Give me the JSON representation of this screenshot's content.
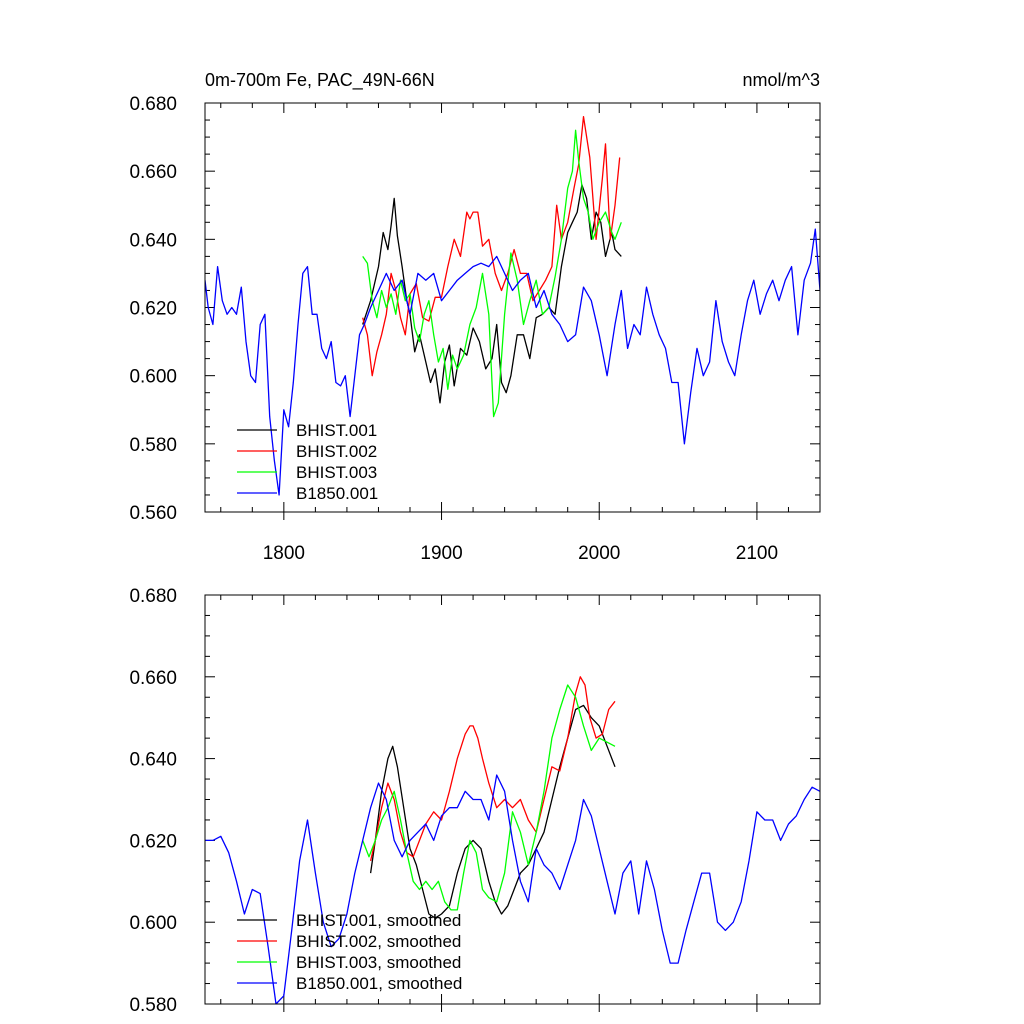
{
  "colors": {
    "BHIST.001": "#000000",
    "BHIST.002": "#ff0000",
    "BHIST.003": "#00ff00",
    "B1850.001": "#0000ff"
  },
  "chart_data": [
    {
      "type": "line",
      "title": "0m-700m Fe, PAC_49N-66N",
      "units": "nmol/m^3",
      "xlim": [
        1750,
        2140
      ],
      "ylim": [
        0.56,
        0.68
      ],
      "xticks": [
        1800,
        1900,
        2000,
        2100
      ],
      "xtick_labels": [
        "1800",
        "1900",
        "2000",
        "2100"
      ],
      "yticks": [
        0.56,
        0.58,
        0.6,
        0.62,
        0.64,
        0.66,
        0.68
      ],
      "ytick_labels": [
        "0.560",
        "0.580",
        "0.600",
        "0.620",
        "0.640",
        "0.660",
        "0.680"
      ],
      "grid": false,
      "legend_position": "bottom-left",
      "series": [
        {
          "name": "BHIST.001",
          "color": "#000000",
          "x": [
            1850,
            1855,
            1860,
            1863,
            1866,
            1868,
            1870,
            1872,
            1875,
            1878,
            1880,
            1883,
            1886,
            1890,
            1893,
            1896,
            1899,
            1902,
            1905,
            1908,
            1912,
            1916,
            1920,
            1924,
            1928,
            1932,
            1935,
            1938,
            1941,
            1944,
            1948,
            1952,
            1956,
            1960,
            1964,
            1968,
            1972,
            1976,
            1980,
            1983,
            1986,
            1989,
            1992,
            1995,
            1998,
            2001,
            2004,
            2008,
            2010,
            2014
          ],
          "y": [
            0.615,
            0.622,
            0.632,
            0.642,
            0.637,
            0.644,
            0.652,
            0.641,
            0.632,
            0.622,
            0.618,
            0.607,
            0.612,
            0.604,
            0.598,
            0.602,
            0.592,
            0.604,
            0.609,
            0.597,
            0.608,
            0.606,
            0.614,
            0.61,
            0.602,
            0.605,
            0.615,
            0.598,
            0.595,
            0.6,
            0.612,
            0.612,
            0.605,
            0.617,
            0.618,
            0.62,
            0.618,
            0.632,
            0.642,
            0.645,
            0.648,
            0.656,
            0.652,
            0.64,
            0.648,
            0.645,
            0.635,
            0.642,
            0.637,
            0.635
          ]
        },
        {
          "name": "BHIST.002",
          "color": "#ff0000",
          "x": [
            1850,
            1853,
            1856,
            1859,
            1862,
            1865,
            1868,
            1871,
            1874,
            1877,
            1880,
            1884,
            1888,
            1892,
            1896,
            1900,
            1904,
            1908,
            1912,
            1916,
            1918,
            1920,
            1923,
            1926,
            1930,
            1934,
            1938,
            1942,
            1946,
            1950,
            1954,
            1958,
            1962,
            1966,
            1970,
            1973,
            1976,
            1980,
            1984,
            1987,
            1990,
            1994,
            1998,
            2002,
            2004,
            2007,
            2010,
            2013
          ],
          "y": [
            0.617,
            0.612,
            0.6,
            0.607,
            0.612,
            0.618,
            0.63,
            0.625,
            0.617,
            0.612,
            0.624,
            0.627,
            0.617,
            0.616,
            0.623,
            0.623,
            0.632,
            0.64,
            0.635,
            0.648,
            0.646,
            0.648,
            0.648,
            0.638,
            0.64,
            0.63,
            0.625,
            0.63,
            0.637,
            0.63,
            0.63,
            0.622,
            0.625,
            0.628,
            0.632,
            0.65,
            0.64,
            0.645,
            0.655,
            0.662,
            0.676,
            0.664,
            0.64,
            0.658,
            0.668,
            0.64,
            0.65,
            0.664
          ]
        },
        {
          "name": "BHIST.003",
          "color": "#00ff00",
          "x": [
            1850,
            1853,
            1856,
            1859,
            1862,
            1865,
            1868,
            1871,
            1874,
            1877,
            1880,
            1883,
            1886,
            1889,
            1892,
            1895,
            1898,
            1901,
            1904,
            1907,
            1910,
            1914,
            1918,
            1922,
            1926,
            1930,
            1933,
            1936,
            1940,
            1944,
            1948,
            1952,
            1956,
            1960,
            1964,
            1968,
            1972,
            1976,
            1980,
            1983,
            1985,
            1987,
            1990,
            1993,
            1996,
            2000,
            2004,
            2008,
            2010,
            2014
          ],
          "y": [
            0.635,
            0.633,
            0.622,
            0.617,
            0.625,
            0.62,
            0.624,
            0.618,
            0.628,
            0.622,
            0.624,
            0.614,
            0.61,
            0.618,
            0.622,
            0.612,
            0.604,
            0.608,
            0.596,
            0.606,
            0.602,
            0.606,
            0.615,
            0.62,
            0.63,
            0.618,
            0.588,
            0.592,
            0.618,
            0.636,
            0.628,
            0.615,
            0.622,
            0.628,
            0.618,
            0.62,
            0.629,
            0.64,
            0.655,
            0.66,
            0.672,
            0.663,
            0.652,
            0.648,
            0.64,
            0.645,
            0.648,
            0.642,
            0.64,
            0.645
          ]
        },
        {
          "name": "B1850.001",
          "color": "#0000ff",
          "x": [
            1750,
            1752,
            1755,
            1758,
            1761,
            1764,
            1767,
            1770,
            1773,
            1776,
            1779,
            1782,
            1785,
            1788,
            1791,
            1794,
            1797,
            1800,
            1803,
            1806,
            1809,
            1812,
            1815,
            1818,
            1821,
            1824,
            1827,
            1830,
            1833,
            1836,
            1839,
            1842,
            1845,
            1848,
            1851,
            1855,
            1860,
            1865,
            1870,
            1875,
            1880,
            1885,
            1890,
            1895,
            1900,
            1905,
            1910,
            1915,
            1920,
            1925,
            1930,
            1935,
            1940,
            1945,
            1950,
            1955,
            1960,
            1965,
            1970,
            1975,
            1980,
            1985,
            1990,
            1995,
            2000,
            2005,
            2010,
            2014,
            2018,
            2022,
            2026,
            2030,
            2034,
            2038,
            2042,
            2046,
            2050,
            2054,
            2058,
            2062,
            2066,
            2070,
            2074,
            2078,
            2082,
            2086,
            2090,
            2094,
            2098,
            2102,
            2106,
            2110,
            2114,
            2118,
            2122,
            2126,
            2130,
            2134,
            2137,
            2140
          ],
          "y": [
            0.628,
            0.62,
            0.615,
            0.632,
            0.622,
            0.618,
            0.62,
            0.618,
            0.626,
            0.61,
            0.6,
            0.598,
            0.615,
            0.618,
            0.588,
            0.575,
            0.565,
            0.59,
            0.585,
            0.598,
            0.615,
            0.63,
            0.632,
            0.618,
            0.618,
            0.608,
            0.605,
            0.61,
            0.598,
            0.597,
            0.6,
            0.588,
            0.6,
            0.612,
            0.615,
            0.62,
            0.625,
            0.63,
            0.625,
            0.628,
            0.618,
            0.63,
            0.628,
            0.63,
            0.622,
            0.625,
            0.628,
            0.63,
            0.632,
            0.633,
            0.632,
            0.635,
            0.63,
            0.625,
            0.628,
            0.63,
            0.62,
            0.625,
            0.618,
            0.615,
            0.61,
            0.612,
            0.626,
            0.622,
            0.612,
            0.6,
            0.615,
            0.625,
            0.608,
            0.615,
            0.612,
            0.626,
            0.618,
            0.612,
            0.608,
            0.598,
            0.598,
            0.58,
            0.595,
            0.608,
            0.6,
            0.604,
            0.622,
            0.61,
            0.604,
            0.6,
            0.612,
            0.622,
            0.628,
            0.618,
            0.624,
            0.628,
            0.622,
            0.628,
            0.632,
            0.612,
            0.628,
            0.633,
            0.643,
            0.625
          ]
        }
      ]
    },
    {
      "type": "line",
      "xlim": [
        1750,
        2140
      ],
      "ylim": [
        0.58,
        0.68
      ],
      "xticks": [
        1800,
        1900,
        2000,
        2100
      ],
      "xtick_labels": [],
      "yticks": [
        0.58,
        0.6,
        0.62,
        0.64,
        0.66,
        0.68
      ],
      "ytick_labels": [
        "0.580",
        "0.600",
        "0.620",
        "0.640",
        "0.660",
        "0.680"
      ],
      "grid": false,
      "legend_position": "bottom-left",
      "series": [
        {
          "name": "BHIST.001, smoothed",
          "color": "#000000",
          "x": [
            1855,
            1858,
            1862,
            1866,
            1869,
            1872,
            1876,
            1880,
            1884,
            1888,
            1892,
            1896,
            1900,
            1905,
            1910,
            1915,
            1920,
            1925,
            1930,
            1934,
            1938,
            1942,
            1946,
            1950,
            1955,
            1960,
            1965,
            1970,
            1975,
            1980,
            1985,
            1990,
            1995,
            2000,
            2005,
            2010
          ],
          "y": [
            0.612,
            0.62,
            0.632,
            0.64,
            0.643,
            0.638,
            0.628,
            0.618,
            0.614,
            0.608,
            0.602,
            0.601,
            0.602,
            0.604,
            0.612,
            0.618,
            0.62,
            0.618,
            0.61,
            0.605,
            0.602,
            0.604,
            0.608,
            0.612,
            0.614,
            0.618,
            0.622,
            0.63,
            0.638,
            0.645,
            0.652,
            0.653,
            0.65,
            0.648,
            0.643,
            0.638
          ]
        },
        {
          "name": "BHIST.002, smoothed",
          "color": "#ff0000",
          "x": [
            1855,
            1858,
            1862,
            1866,
            1870,
            1874,
            1878,
            1882,
            1886,
            1890,
            1895,
            1900,
            1905,
            1910,
            1915,
            1918,
            1920,
            1923,
            1926,
            1930,
            1935,
            1940,
            1945,
            1950,
            1955,
            1960,
            1965,
            1970,
            1975,
            1980,
            1985,
            1988,
            1991,
            1994,
            1998,
            2002,
            2006,
            2010
          ],
          "y": [
            0.615,
            0.62,
            0.628,
            0.634,
            0.63,
            0.622,
            0.617,
            0.616,
            0.62,
            0.624,
            0.627,
            0.625,
            0.632,
            0.64,
            0.646,
            0.648,
            0.648,
            0.645,
            0.64,
            0.634,
            0.628,
            0.63,
            0.628,
            0.63,
            0.625,
            0.622,
            0.63,
            0.638,
            0.637,
            0.645,
            0.656,
            0.66,
            0.658,
            0.65,
            0.645,
            0.646,
            0.652,
            0.654
          ]
        },
        {
          "name": "BHIST.003, smoothed",
          "color": "#00ff00",
          "x": [
            1850,
            1854,
            1858,
            1862,
            1866,
            1870,
            1874,
            1878,
            1882,
            1886,
            1890,
            1894,
            1898,
            1902,
            1906,
            1910,
            1914,
            1918,
            1922,
            1926,
            1930,
            1935,
            1940,
            1945,
            1950,
            1955,
            1960,
            1965,
            1970,
            1975,
            1980,
            1985,
            1990,
            1995,
            2000,
            2005,
            2010
          ],
          "y": [
            0.62,
            0.616,
            0.62,
            0.625,
            0.628,
            0.632,
            0.625,
            0.617,
            0.61,
            0.608,
            0.61,
            0.608,
            0.61,
            0.605,
            0.603,
            0.603,
            0.612,
            0.62,
            0.617,
            0.608,
            0.606,
            0.605,
            0.612,
            0.627,
            0.622,
            0.614,
            0.622,
            0.632,
            0.645,
            0.652,
            0.658,
            0.655,
            0.648,
            0.642,
            0.645,
            0.644,
            0.643
          ]
        },
        {
          "name": "B1850.001, smoothed",
          "color": "#0000ff",
          "x": [
            1750,
            1755,
            1760,
            1765,
            1770,
            1775,
            1780,
            1785,
            1790,
            1795,
            1800,
            1805,
            1810,
            1815,
            1820,
            1825,
            1830,
            1835,
            1840,
            1845,
            1850,
            1855,
            1860,
            1865,
            1870,
            1875,
            1880,
            1885,
            1890,
            1895,
            1900,
            1905,
            1910,
            1915,
            1920,
            1925,
            1930,
            1935,
            1940,
            1945,
            1950,
            1955,
            1960,
            1965,
            1970,
            1975,
            1980,
            1985,
            1990,
            1995,
            2000,
            2005,
            2010,
            2015,
            2020,
            2025,
            2030,
            2035,
            2040,
            2045,
            2050,
            2055,
            2060,
            2065,
            2070,
            2075,
            2080,
            2085,
            2090,
            2095,
            2100,
            2105,
            2110,
            2115,
            2120,
            2125,
            2130,
            2135,
            2140
          ],
          "y": [
            0.62,
            0.62,
            0.621,
            0.617,
            0.61,
            0.602,
            0.608,
            0.607,
            0.594,
            0.58,
            0.582,
            0.598,
            0.615,
            0.625,
            0.612,
            0.6,
            0.594,
            0.596,
            0.602,
            0.612,
            0.62,
            0.628,
            0.634,
            0.63,
            0.62,
            0.616,
            0.62,
            0.622,
            0.624,
            0.62,
            0.626,
            0.628,
            0.628,
            0.632,
            0.63,
            0.63,
            0.625,
            0.636,
            0.632,
            0.62,
            0.61,
            0.605,
            0.618,
            0.614,
            0.612,
            0.608,
            0.614,
            0.62,
            0.63,
            0.626,
            0.618,
            0.61,
            0.602,
            0.612,
            0.615,
            0.602,
            0.615,
            0.608,
            0.598,
            0.59,
            0.59,
            0.598,
            0.605,
            0.612,
            0.612,
            0.6,
            0.598,
            0.6,
            0.605,
            0.615,
            0.627,
            0.625,
            0.625,
            0.62,
            0.624,
            0.626,
            0.63,
            0.633,
            0.632
          ]
        }
      ]
    }
  ]
}
